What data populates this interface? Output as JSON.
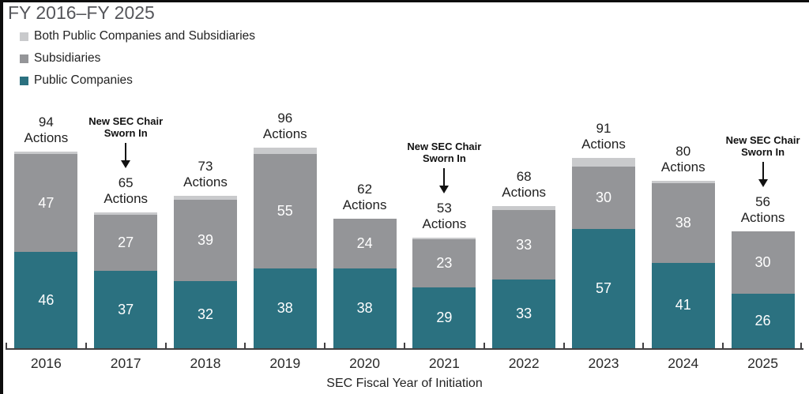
{
  "title": "FY 2016–FY 2025",
  "legend": {
    "items": [
      {
        "label": "Both Public Companies and Subsidiaries",
        "color": "#c9cacc",
        "icon": "legend-swatch-light-gray"
      },
      {
        "label": "Subsidiaries",
        "color": "#949598",
        "icon": "legend-swatch-gray"
      },
      {
        "label": "Public Companies",
        "color": "#2b7180",
        "icon": "legend-swatch-teal"
      }
    ]
  },
  "chart_data": {
    "type": "bar",
    "stacked": true,
    "title": "FY 2016–FY 2025",
    "xlabel": "SEC Fiscal Year of Initiation",
    "ylabel": "",
    "ylim": [
      0,
      100
    ],
    "grid": false,
    "legend_position": "top-left",
    "categories": [
      "2016",
      "2017",
      "2018",
      "2019",
      "2020",
      "2021",
      "2022",
      "2023",
      "2024",
      "2025"
    ],
    "series": [
      {
        "name": "Public Companies",
        "color": "#2b7180",
        "labeled": true,
        "values": [
          46,
          37,
          32,
          38,
          38,
          29,
          33,
          57,
          41,
          26
        ]
      },
      {
        "name": "Subsidiaries",
        "color": "#949598",
        "labeled": true,
        "values": [
          47,
          27,
          39,
          55,
          24,
          23,
          33,
          30,
          38,
          30
        ]
      },
      {
        "name": "Both Public Companies and Subsidiaries",
        "color": "#c9cacc",
        "labeled": false,
        "values": [
          1,
          1,
          2,
          3,
          0,
          1,
          2,
          4,
          1,
          0
        ]
      }
    ],
    "totals": [
      94,
      65,
      73,
      96,
      62,
      53,
      68,
      91,
      80,
      56
    ],
    "total_suffix": "Actions",
    "annotations": [
      {
        "category": "2017",
        "lines": [
          "New SEC Chair",
          "Sworn In"
        ]
      },
      {
        "category": "2021",
        "lines": [
          "New SEC Chair",
          "Sworn In"
        ]
      },
      {
        "category": "2025",
        "lines": [
          "New SEC Chair",
          "Sworn In"
        ]
      }
    ]
  },
  "colors": {
    "teal": "#2b7180",
    "gray": "#949598",
    "light_gray": "#c9cacc",
    "axis": "#414042",
    "title_text": "#55565b",
    "text": "#232323",
    "segment_label": "#ffffff",
    "border": "#0d0d0d"
  }
}
